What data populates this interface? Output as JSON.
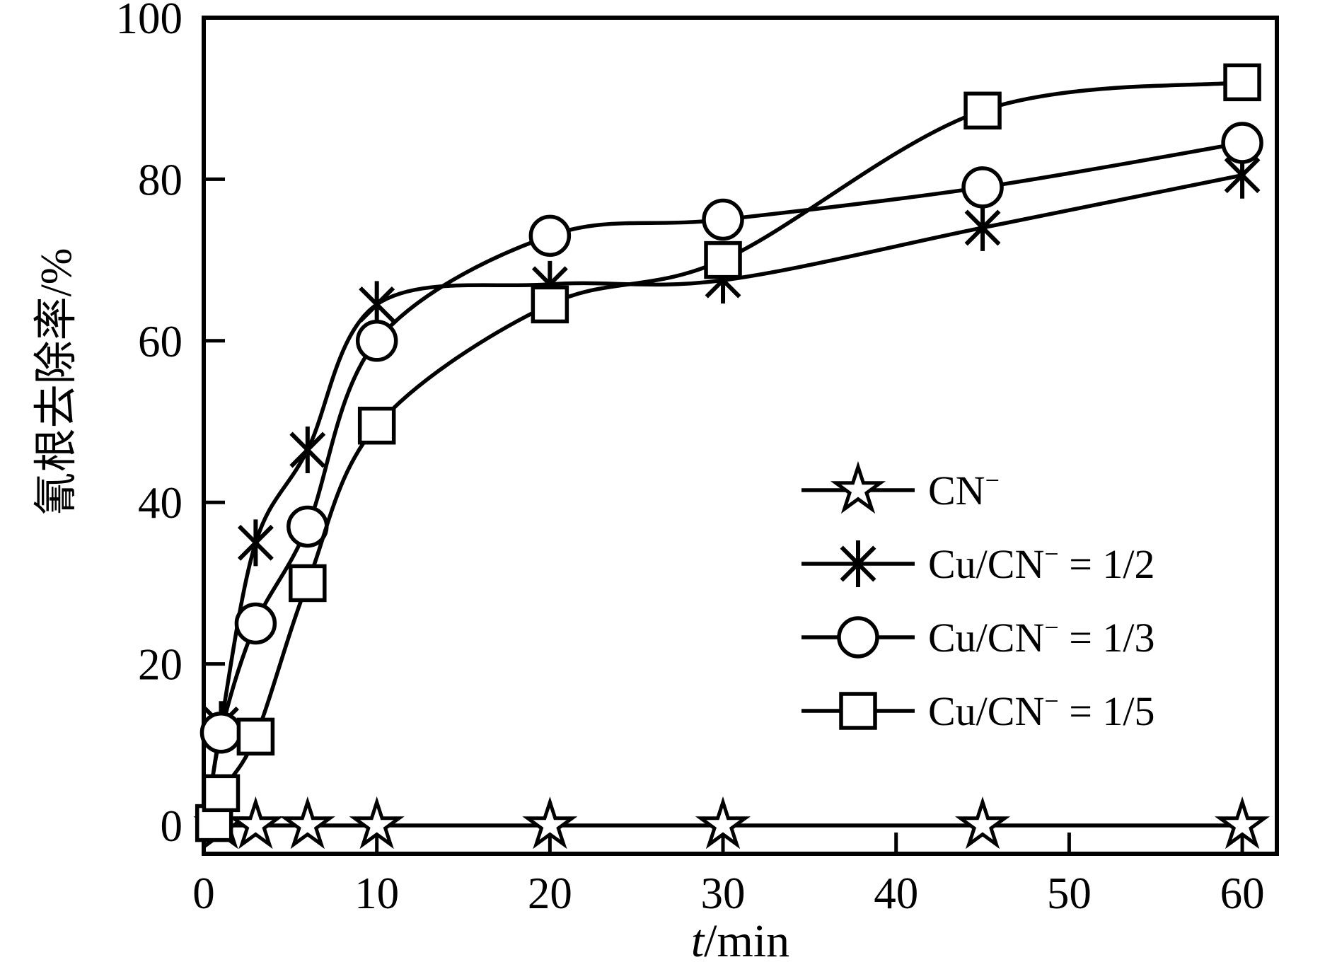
{
  "figure": {
    "background": "#ffffff",
    "ink": "#000000"
  },
  "chart_data": {
    "type": "line",
    "title": "",
    "xlabel": "t/min",
    "xlabel_parts": {
      "italic": "t",
      "upright": "/min"
    },
    "ylabel": "氰根去除率/%",
    "xlim": [
      0,
      62
    ],
    "ylim": [
      -3.5,
      100
    ],
    "x_ticks": [
      0,
      10,
      20,
      30,
      40,
      50,
      60
    ],
    "y_ticks": [
      0,
      20,
      40,
      60,
      80,
      100
    ],
    "grid": false,
    "legend_position": "inside-right-center",
    "series": [
      {
        "id": "cn",
        "name": "CN⁻",
        "legend_parts": {
          "base": "CN",
          "sup": "−",
          "rest": ""
        },
        "marker": "star",
        "line": "straight",
        "line_start": [
          0,
          0
        ],
        "x": [
          1,
          3,
          6,
          10,
          20,
          30,
          45,
          60
        ],
        "y": [
          0,
          0,
          0,
          0,
          0,
          0,
          0,
          0
        ]
      },
      {
        "id": "cu-cn-1-2",
        "name": "Cu/CN⁻ = 1/2",
        "legend_parts": {
          "base": "Cu/CN",
          "sup": "−",
          "rest": " = 1/2"
        },
        "marker": "asterisk",
        "line": "smooth",
        "line_start": [
          0,
          -2
        ],
        "x": [
          1,
          3,
          6,
          10,
          20,
          30,
          45,
          60
        ],
        "y": [
          12.5,
          35,
          46.5,
          64.5,
          67,
          67.5,
          74,
          80.5
        ]
      },
      {
        "id": "cu-cn-1-3",
        "name": "Cu/CN⁻ = 1/3",
        "legend_parts": {
          "base": "Cu/CN",
          "sup": "−",
          "rest": " = 1/3"
        },
        "marker": "circle",
        "line": "smooth",
        "line_start": [
          0,
          -2
        ],
        "x": [
          1,
          3,
          6,
          10,
          20,
          30,
          45,
          60
        ],
        "y": [
          11.5,
          25,
          37,
          60,
          73,
          75,
          79,
          84.5
        ]
      },
      {
        "id": "cu-cn-1-5",
        "name": "Cu/CN⁻ = 1/5",
        "legend_parts": {
          "base": "Cu/CN",
          "sup": "−",
          "rest": " = 1/5"
        },
        "marker": "square",
        "line": "smooth",
        "line_start": [
          0,
          -2
        ],
        "x": [
          0.6,
          1,
          3,
          6,
          10,
          20,
          30,
          45,
          60
        ],
        "y": [
          0.3,
          4,
          11,
          30,
          49.5,
          64.5,
          70,
          88.5,
          92
        ]
      }
    ]
  }
}
